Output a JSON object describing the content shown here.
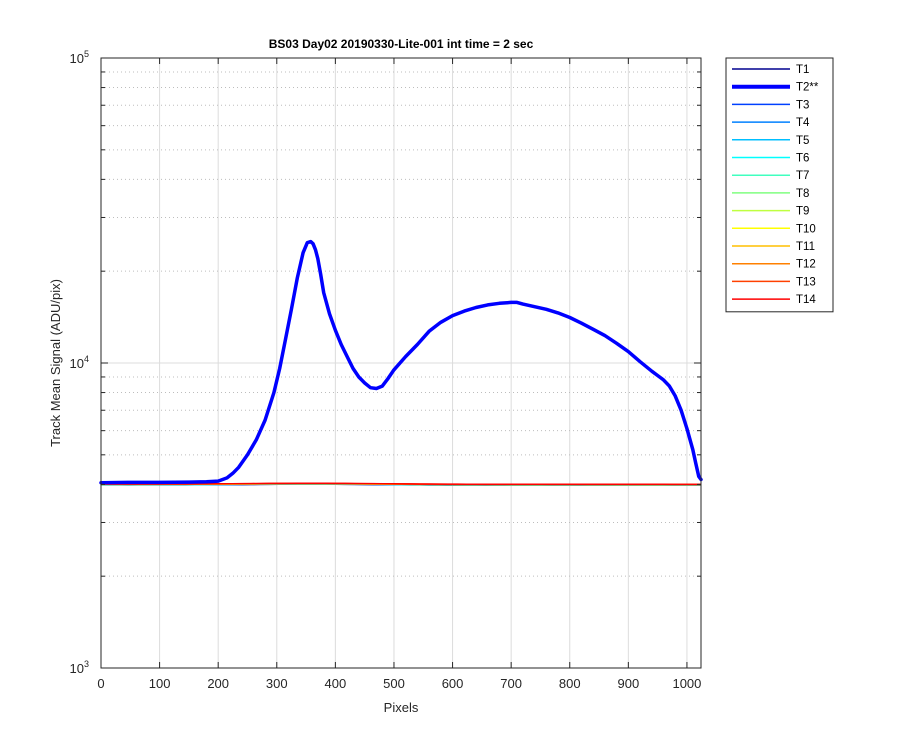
{
  "chart_data": {
    "type": "line",
    "title": "BS03 Day02 20190330-Lite-001 int time = 2 sec",
    "xlabel": "Pixels",
    "ylabel": "Track Mean Signal (ADU/pix)",
    "xlim": [
      0,
      1024
    ],
    "ylim": [
      1000,
      100000
    ],
    "yscale": "log",
    "grid": true,
    "legend_position": "outside-top-right",
    "x_ticks": [
      "0",
      "100",
      "200",
      "300",
      "400",
      "500",
      "600",
      "700",
      "800",
      "900",
      "1000"
    ],
    "y_ticks": [
      {
        "value": 1000,
        "base": "10",
        "exp": "3"
      },
      {
        "value": 10000,
        "base": "10",
        "exp": "4"
      },
      {
        "value": 100000,
        "base": "10",
        "exp": "5"
      }
    ],
    "series": [
      {
        "name": "T1",
        "color": "#00008f",
        "width": 1.5,
        "flat": 4000
      },
      {
        "name": "T2**",
        "color": "#0000ff",
        "width": 3.5,
        "highlight": true,
        "x": [
          0,
          50,
          100,
          150,
          180,
          200,
          215,
          225,
          235,
          250,
          265,
          280,
          295,
          305,
          315,
          325,
          335,
          345,
          352,
          358,
          362,
          366,
          370,
          375,
          380,
          390,
          400,
          410,
          420,
          430,
          440,
          450,
          460,
          470,
          480,
          490,
          500,
          520,
          540,
          560,
          580,
          600,
          620,
          640,
          660,
          680,
          700,
          710,
          720,
          740,
          760,
          780,
          800,
          820,
          840,
          860,
          880,
          900,
          920,
          940,
          950,
          960,
          970,
          980,
          990,
          1000,
          1010,
          1015,
          1020,
          1024
        ],
        "y": [
          4050,
          4060,
          4060,
          4070,
          4080,
          4100,
          4200,
          4350,
          4550,
          5000,
          5600,
          6500,
          8000,
          9600,
          12000,
          15000,
          19000,
          23000,
          24800,
          25000,
          24600,
          23500,
          22000,
          19500,
          17000,
          14500,
          12800,
          11500,
          10500,
          9600,
          9000,
          8600,
          8300,
          8250,
          8400,
          8900,
          9500,
          10500,
          11500,
          12700,
          13600,
          14300,
          14800,
          15200,
          15500,
          15700,
          15800,
          15800,
          15600,
          15300,
          15000,
          14600,
          14100,
          13500,
          12900,
          12300,
          11600,
          10900,
          10100,
          9400,
          9100,
          8800,
          8400,
          7800,
          7000,
          6100,
          5200,
          4700,
          4250,
          4150
        ]
      },
      {
        "name": "T3",
        "color": "#0040ff",
        "width": 1.5,
        "flat": 4000
      },
      {
        "name": "T4",
        "color": "#0080ff",
        "width": 1.5,
        "flat": 4000
      },
      {
        "name": "T5",
        "color": "#00bfff",
        "width": 1.5,
        "flat": 4000
      },
      {
        "name": "T6",
        "color": "#00ffff",
        "width": 1.5,
        "flat": 4000
      },
      {
        "name": "T7",
        "color": "#40ffbf",
        "width": 1.5,
        "flat": 4000
      },
      {
        "name": "T8",
        "color": "#80ff80",
        "width": 1.5,
        "flat": 4000
      },
      {
        "name": "T9",
        "color": "#bfff40",
        "width": 1.5,
        "flat": 4000
      },
      {
        "name": "T10",
        "color": "#ffff00",
        "width": 1.5,
        "flat": 4000
      },
      {
        "name": "T11",
        "color": "#ffbf00",
        "width": 1.5,
        "flat": 4000
      },
      {
        "name": "T12",
        "color": "#ff8000",
        "width": 1.5,
        "flat": 4000
      },
      {
        "name": "T13",
        "color": "#ff4000",
        "width": 1.5,
        "flat": 4000
      },
      {
        "name": "T14",
        "color": "#ff0000",
        "width": 1.5,
        "flat": 4000
      }
    ]
  }
}
